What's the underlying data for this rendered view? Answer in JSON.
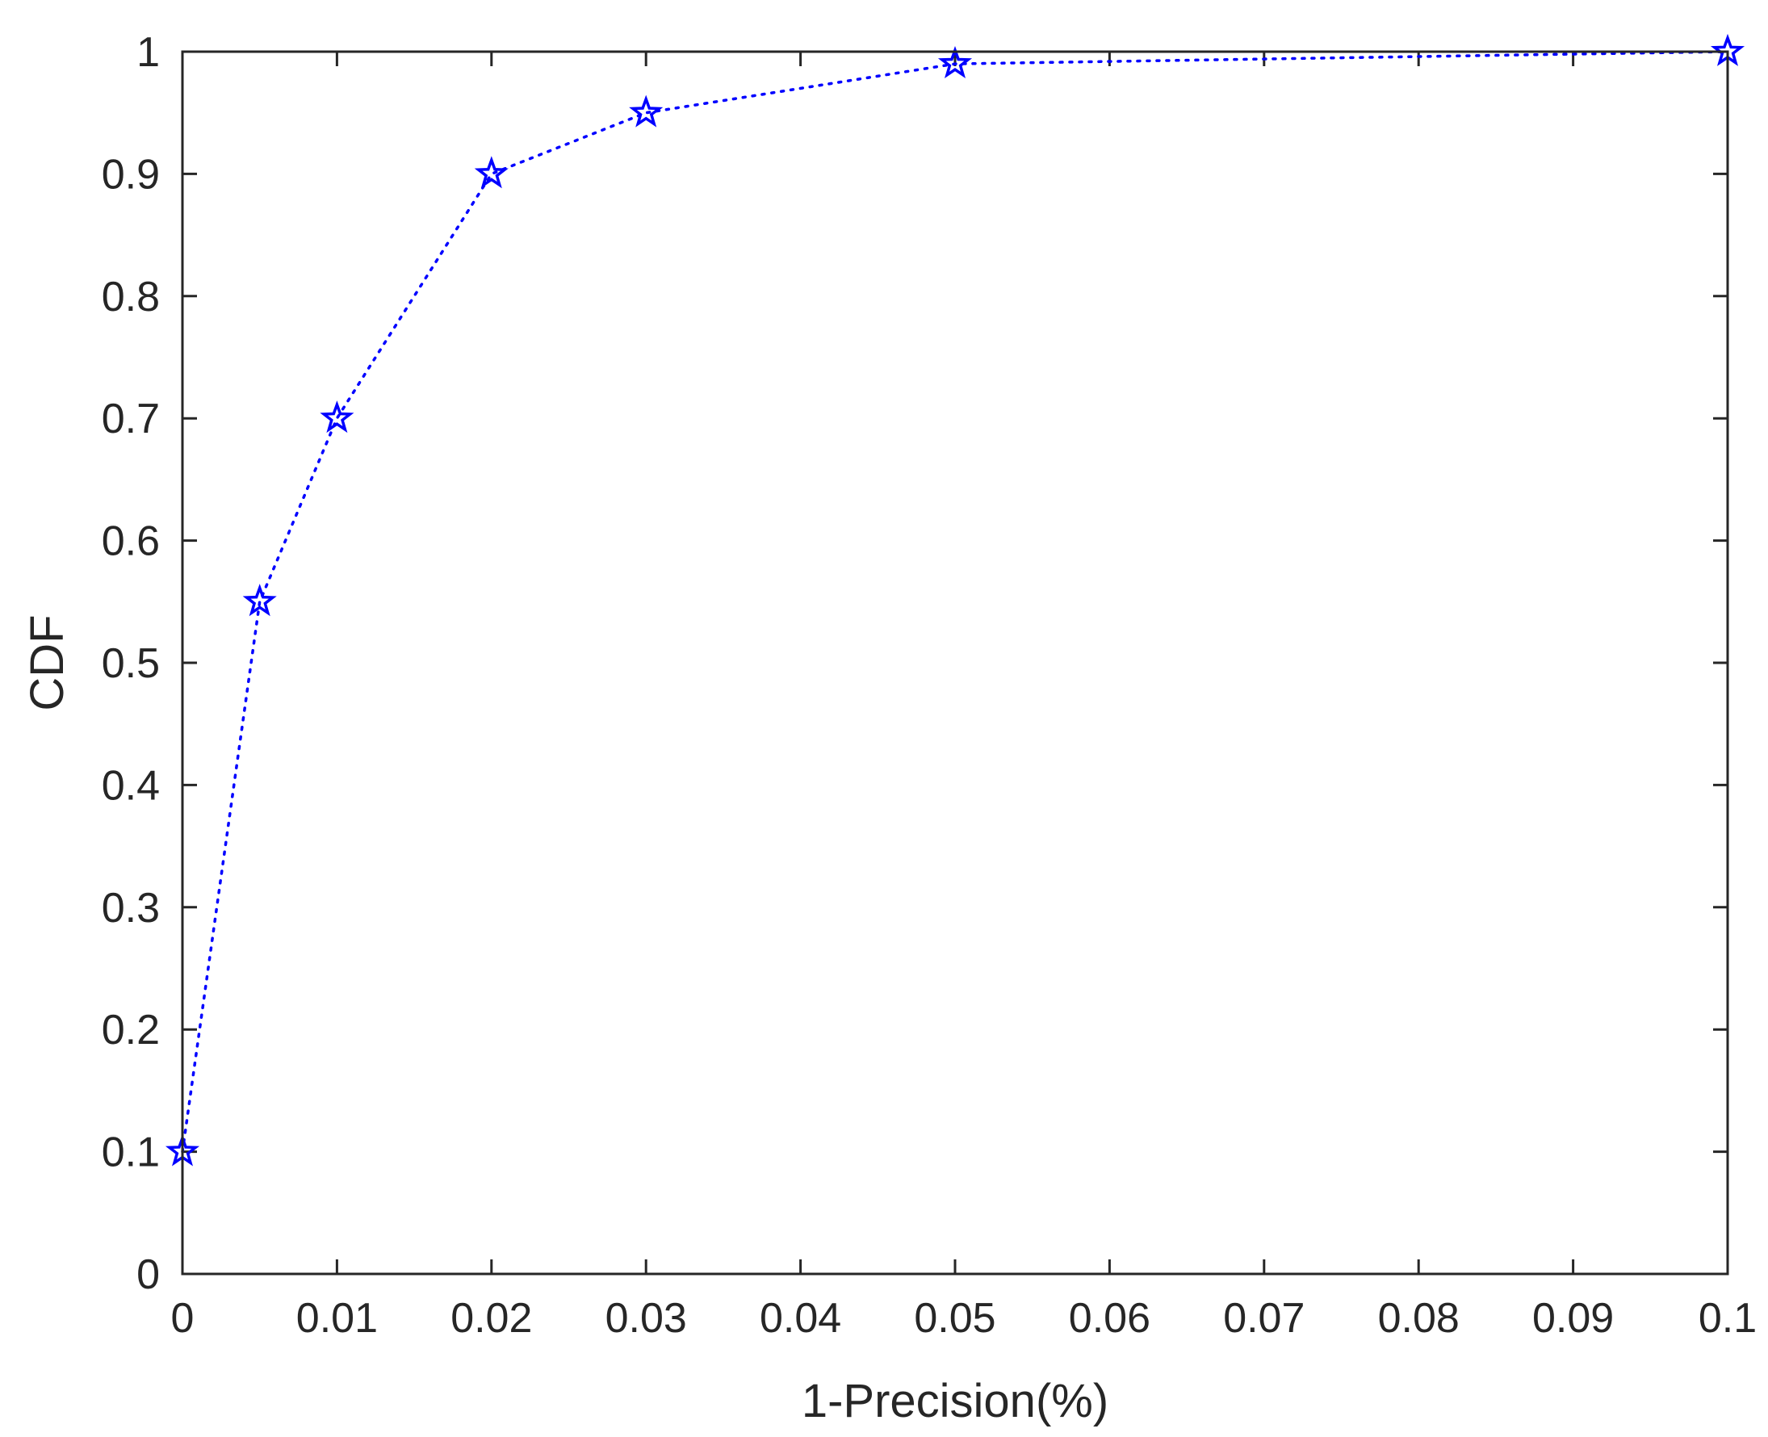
{
  "chart_data": {
    "type": "line",
    "title": "",
    "xlabel": "1-Precision(%)",
    "ylabel": "CDF",
    "xlim": [
      0,
      0.1
    ],
    "ylim": [
      0,
      1
    ],
    "x_ticks": [
      "0",
      "0.01",
      "0.02",
      "0.03",
      "0.04",
      "0.05",
      "0.06",
      "0.07",
      "0.08",
      "0.09",
      "0.1"
    ],
    "y_ticks": [
      "0",
      "0.1",
      "0.2",
      "0.3",
      "0.4",
      "0.5",
      "0.6",
      "0.7",
      "0.8",
      "0.9",
      "1"
    ],
    "grid": false,
    "box": true,
    "series": [
      {
        "x": [
          0,
          0.005,
          0.01,
          0.02,
          0.03,
          0.05,
          0.1
        ],
        "y": [
          0.1,
          0.55,
          0.7,
          0.9,
          0.95,
          0.99,
          1.0
        ],
        "color": "#0000ff",
        "line_style": "dotted",
        "marker": "pentagram"
      }
    ]
  }
}
